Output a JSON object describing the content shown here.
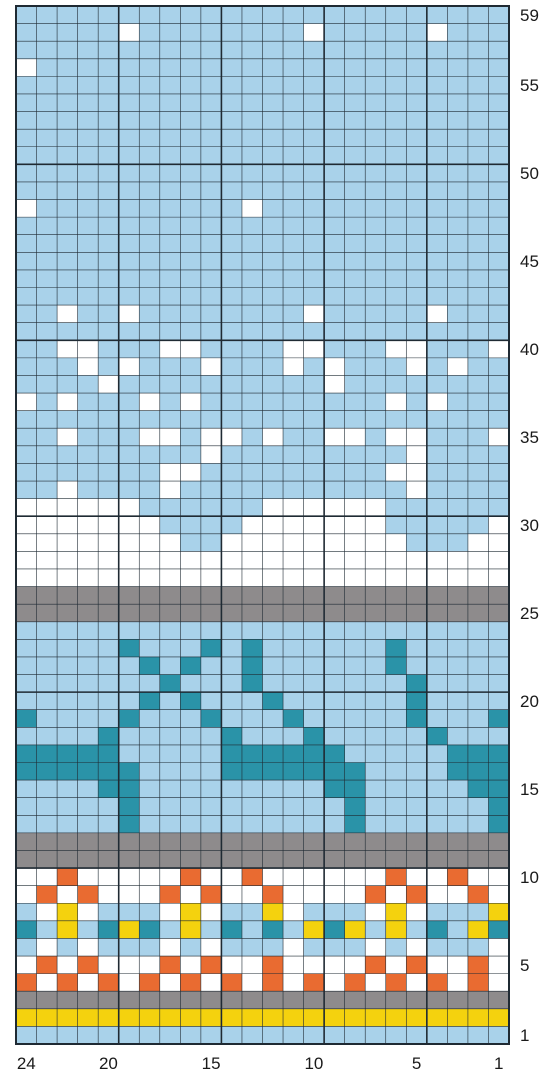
{
  "chart_data": {
    "type": "knitting-colorwork-chart",
    "columns": 24,
    "rows": 59,
    "row_labels": [
      "59",
      "55",
      "50",
      "45",
      "40",
      "35",
      "30",
      "25",
      "20",
      "15",
      "10",
      "5",
      "1"
    ],
    "row_label_values": [
      59,
      55,
      50,
      45,
      40,
      35,
      30,
      25,
      20,
      15,
      10,
      5,
      1
    ],
    "column_labels": [
      "24",
      "20",
      "15",
      "10",
      "5",
      "1"
    ],
    "column_label_values": [
      24,
      20,
      15,
      10,
      5,
      1
    ],
    "palette": {
      "L": "#a9d2ea",
      "W": "#ffffff",
      "G": "#8e8b8c",
      "T": "#2a93a8",
      "O": "#e96b31",
      "Y": "#f4d20e"
    },
    "grid_rows_top_to_bottom": [
      "LLLLLLLLLLLLLLLLLLLLLLLL",
      "LLLLLWLLLLLLLLWLLLLLWLLL",
      "LLLLLLLLLLLLLLLLLLLLLLLL",
      "WLLLLLLLLLLLLLLLLLLLLLLL",
      "LLLLLLLLLLLLLLLLLLLLLLLL",
      "LLLLLLLLLLLLLLLLLLLLLLLL",
      "LLLLLLLLLLLLLLLLLLLLLLLL",
      "LLLLLLLLLLLLLLLLLLLLLLLL",
      "LLLLLLLLLLLLLLLLLLLLLLLL",
      "LLLLLLLLLLLLLLLLLLLLLLLL",
      "LLLLLLLLLLLLLLLLLLLLLLLL",
      "WLLLLLLLLLLWLLLLLLLLLLLL",
      "LLLLLLLLLLLLLLLLLLLLLLLL",
      "LLLLLLLLLLLLLLLLLLLLLLLL",
      "LLLLLLLLLLLLLLLLLLLLLLLL",
      "LLLLLLLLLLLLLLLLLLLLLLLL",
      "LLLLLLLLLLLLLLLLLLLLLLLL",
      "LLWLLWLLLLLLLLWLLLLLWLLL",
      "LLLLLLLLLLLLLLLLLLLLLLLL",
      "LLWWLLLWWLLLLWWLLLWWLLLW",
      "LLLWLWLLLWLLLWLWLLLWLWLL",
      "LLLLWLLLLLLLLLLWLLLLLLLL",
      "WLWLLLWLWLLLLLLLLLWLWLLL",
      "LLLLLLLLLLLLLLLLLLLLLLLL",
      "LLWLLLWWLWWLWLLWWLWWLLLW",
      "LLLLLLLLLWLLLLLLLLLWLLLL",
      "LLLLLLLWWLLLLLLLLLWWLLLL",
      "LLWLLLLWLLLLLLLLLLLWLLLL",
      "WWWWWWLLLLLLWWWWWWLLLLLL",
      "WWWWWWWLLLLWWWWWWWLLLLLW",
      "WWWWWWWWLLWWWWWWWWWLLLWW",
      "WWWWWWWWWWWWWWWWWWWWWWWW",
      "WWWWWWWWWWWWWWWWWWWWWWWW",
      "GGGGGGGGGGGGGGGGGGGGGGGG",
      "GGGGGGGGGGGGGGGGGGGGGGGG",
      "LLLLLLLLLLLLLLLLLLLLLLLL",
      "LLLLLTLLLTLTLLLLLLTLLLLL",
      "LLLLLLTLTLLTLLLLLLTLLLLL",
      "LLLLLLLTLLLTLLLLLLLTLLLL",
      "LLLLLLTLTLLLTLLLLLLTLLLL",
      "TLLLLTLLLTLLLTLLLLLTLLLT",
      "LLLLTLLLLLTLLLTLLLLLTLLL",
      "TTTTTLLLLLTTTTTTLLLLLTTT",
      "TTTTTTLLLLTTTTTTTLLLLTTT",
      "LLLLTTLLLLLLLLLTTLLLLLTT",
      "LLLLLTLLLLLLLLLLTLLLLLLT",
      "LLLLLTLLLLLLLLLLTLLLLLLT",
      "GGGGGGGGGGGGGGGGGGGGGGGG",
      "GGGGGGGGGGGGGGGGGGGGGGGG",
      "WWOWWWWWOWWOWWWWWWOWWOWW",
      "WOWOWWWOWOWWOWWWWOWOWWOW",
      "LWYWLLLWYWLLYWLLLWYWLLLY",
      "TLYLTYTLYLTLTLYTYLYLTLYT",
      "LWLWLLLWLWLLLWLLLWLWLLLW",
      "WOWOWWWOWOWWOWWWWOWOWWOW",
      "OWOWOWOWOWOWOWOWOWOWOWOW",
      "GGGGGGGGGGGGGGGGGGGGGGGG",
      "YYYYYYYYYYYYYYYYYYYYYYYY",
      "LLLLLLLLLLLLLLLLLLLLLLLL"
    ]
  }
}
